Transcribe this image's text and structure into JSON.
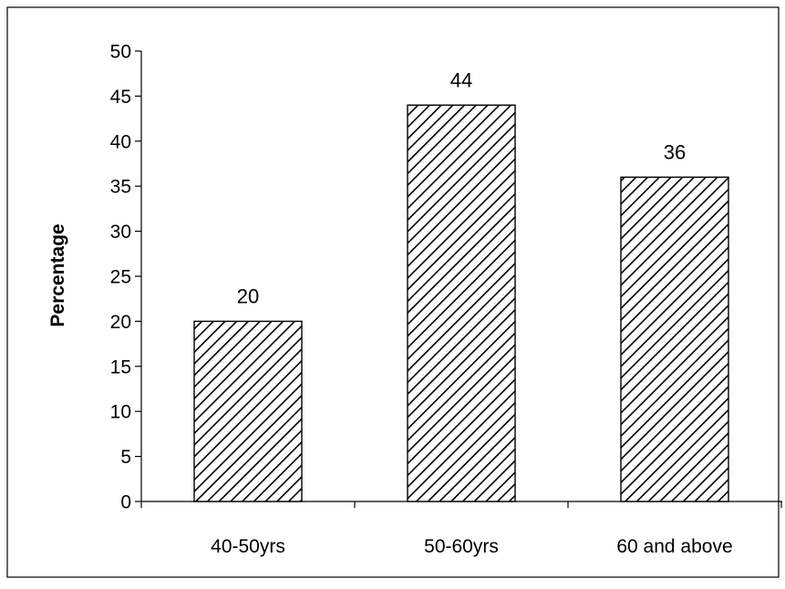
{
  "chart_data": {
    "type": "bar",
    "title": "",
    "xlabel": "",
    "ylabel": "Percentage",
    "categories": [
      "40-50yrs",
      "50-60yrs",
      "60 and above"
    ],
    "values": [
      20,
      44,
      36
    ],
    "data_labels": [
      "20",
      "44",
      "36"
    ],
    "ylim": [
      0,
      50
    ],
    "yticks": [
      0,
      5,
      10,
      15,
      20,
      25,
      30,
      35,
      40,
      45,
      50
    ],
    "grid": false,
    "legend": "none",
    "bar_fill": "diagonal-hatch",
    "colors": {
      "bar_stroke": "#000000",
      "hatch": "#000000",
      "background": "#ffffff",
      "axis": "#000000"
    }
  }
}
